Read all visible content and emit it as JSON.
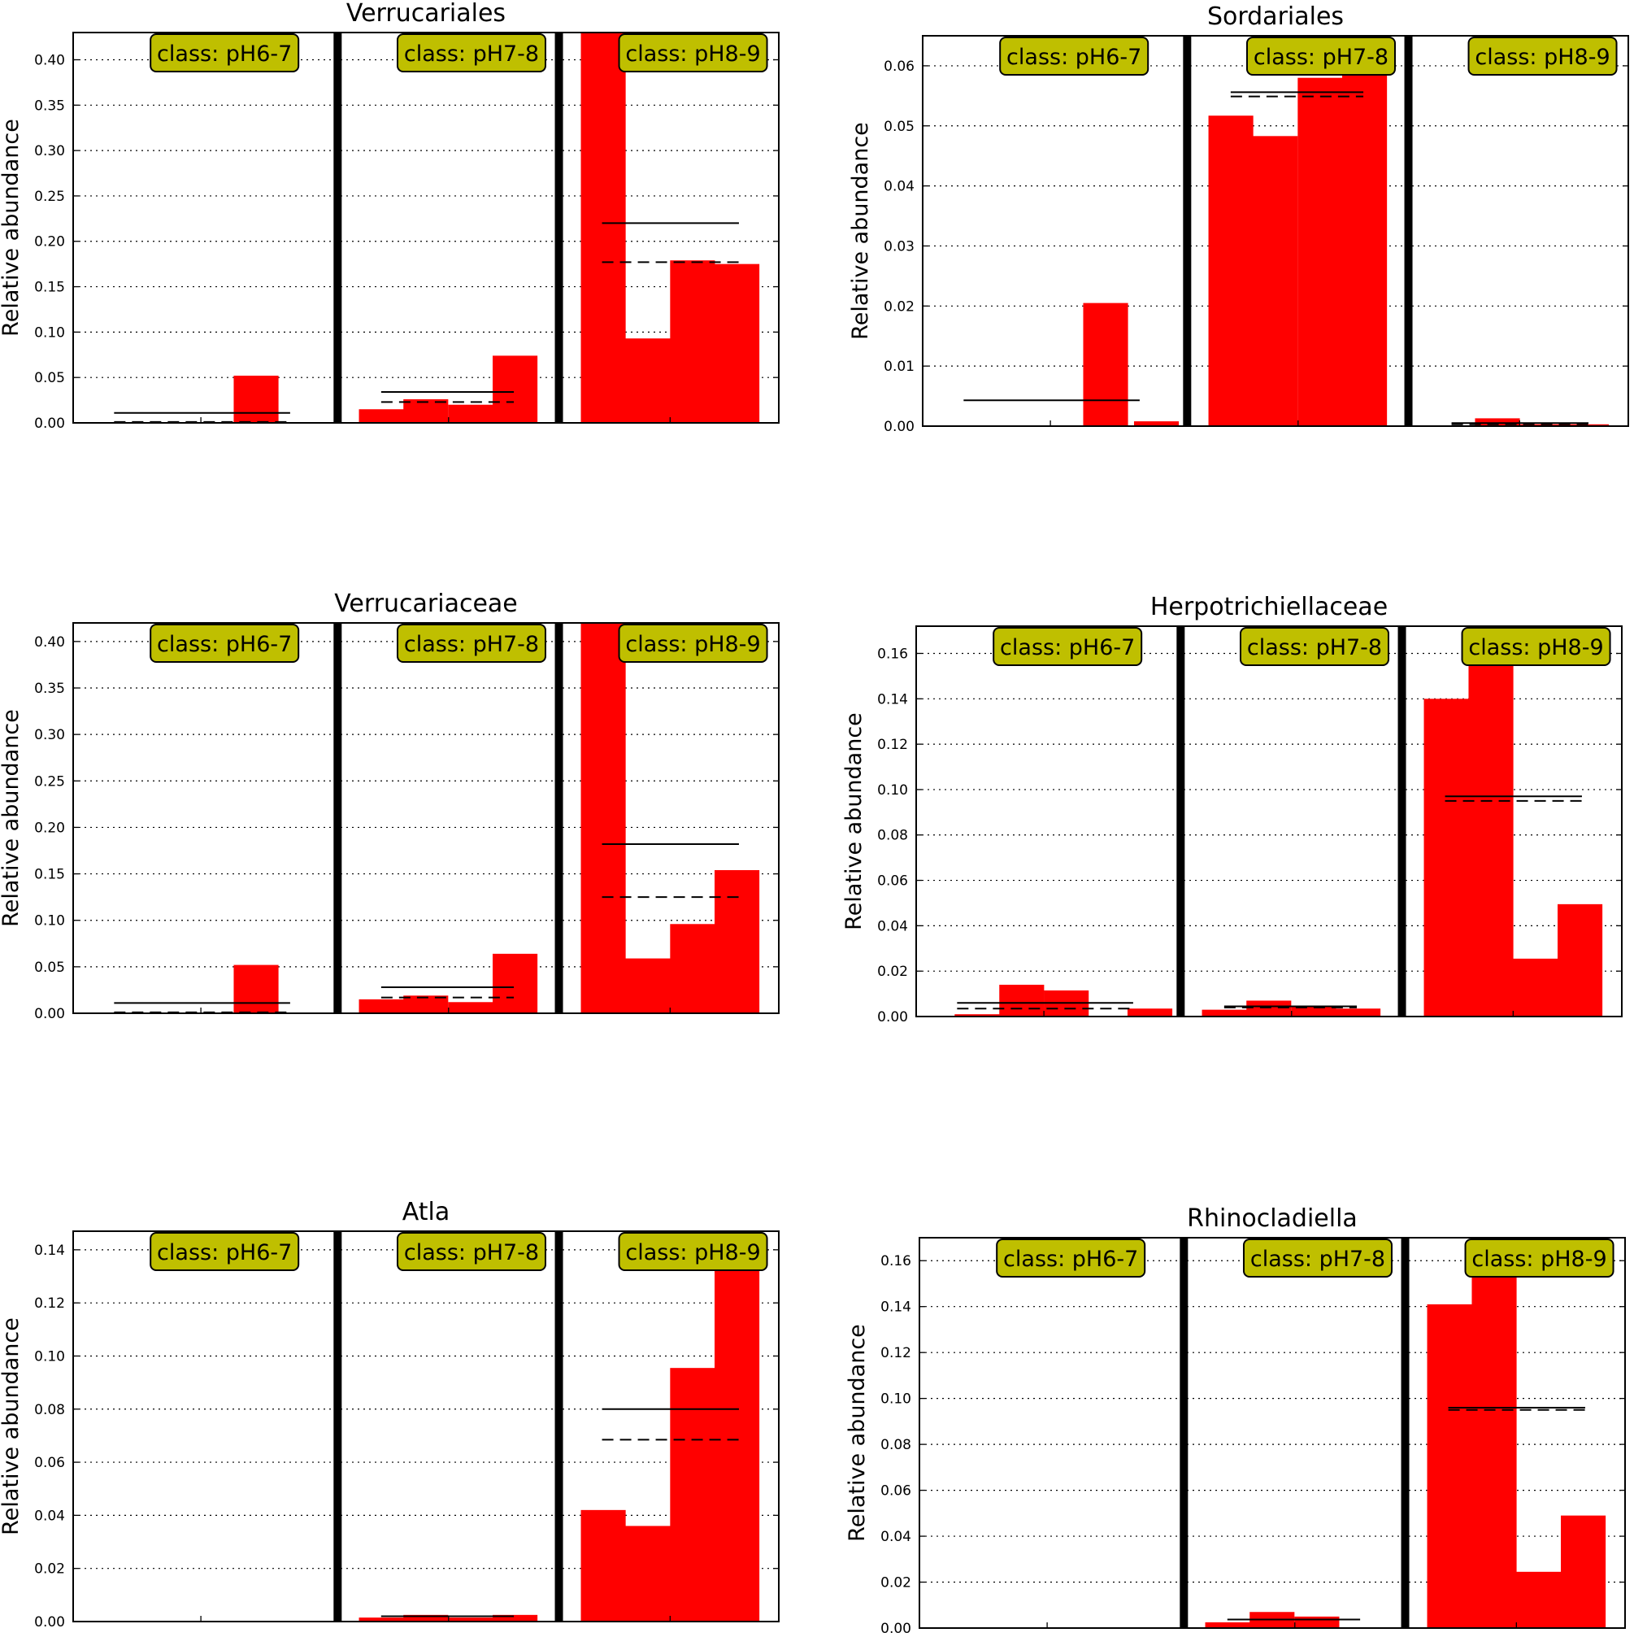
{
  "figure": {
    "ylabel": "Relative abundance",
    "class_labels": [
      "class: pH6-7",
      "class: pH7-8",
      "class: pH8-9"
    ],
    "colors": {
      "bar": "#ff0000",
      "badge_fill": "#bfbf00",
      "badge_border": "#000000",
      "separator": "#000000"
    }
  },
  "chart_data": [
    {
      "type": "bar",
      "title": "Verrucariales",
      "ylabel": "Relative abundance",
      "ylim": [
        0,
        0.43
      ],
      "yticks": [
        "0.00",
        "0.05",
        "0.10",
        "0.15",
        "0.20",
        "0.25",
        "0.30",
        "0.35",
        "0.40"
      ],
      "grid": true,
      "groups": [
        {
          "label": "class: pH6-7",
          "values": [
            0,
            0,
            0,
            0.052,
            0
          ],
          "mean": 0.011,
          "median": 0.001
        },
        {
          "label": "class: pH7-8",
          "values": [
            0.015,
            0.026,
            0.02,
            0.074
          ],
          "mean": 0.034,
          "median": 0.023
        },
        {
          "label": "class: pH8-9",
          "values": [
            0.43,
            0.093,
            0.179,
            0.175
          ],
          "mean": 0.22,
          "median": 0.177
        }
      ]
    },
    {
      "type": "bar",
      "title": "Sordariales",
      "ylabel": "Relative abundance",
      "ylim": [
        0,
        0.065
      ],
      "yticks": [
        "0.00",
        "0.01",
        "0.02",
        "0.03",
        "0.04",
        "0.05",
        "0.06"
      ],
      "grid": true,
      "groups": [
        {
          "label": "class: pH6-7",
          "values": [
            0,
            0,
            0,
            0.0205,
            0.0008
          ],
          "mean": 0.0043,
          "median": 0
        },
        {
          "label": "class: pH7-8",
          "values": [
            0.0517,
            0.0483,
            0.058,
            0.065
          ],
          "mean": 0.0556,
          "median": 0.0549
        },
        {
          "label": "class: pH8-9",
          "values": [
            0.0001,
            0.0013,
            0.0003,
            0.0003
          ],
          "mean": 0.0005,
          "median": 0.0003
        }
      ]
    },
    {
      "type": "bar",
      "title": "Verrucariaceae",
      "ylabel": "Relative abundance",
      "ylim": [
        0,
        0.42
      ],
      "yticks": [
        "0.00",
        "0.05",
        "0.10",
        "0.15",
        "0.20",
        "0.25",
        "0.30",
        "0.35",
        "0.40"
      ],
      "grid": true,
      "groups": [
        {
          "label": "class: pH6-7",
          "values": [
            0,
            0,
            0,
            0.052,
            0
          ],
          "mean": 0.011,
          "median": 0.001
        },
        {
          "label": "class: pH7-8",
          "values": [
            0.015,
            0.019,
            0.012,
            0.064
          ],
          "mean": 0.028,
          "median": 0.017
        },
        {
          "label": "class: pH8-9",
          "values": [
            0.42,
            0.059,
            0.096,
            0.154
          ],
          "mean": 0.182,
          "median": 0.125
        }
      ]
    },
    {
      "type": "bar",
      "title": "Herpotrichiellaceae",
      "ylabel": "Relative abundance",
      "ylim": [
        0,
        0.172
      ],
      "yticks": [
        "0.00",
        "0.02",
        "0.04",
        "0.06",
        "0.08",
        "0.10",
        "0.12",
        "0.14",
        "0.16"
      ],
      "grid": true,
      "groups": [
        {
          "label": "class: pH6-7",
          "values": [
            0.001,
            0.014,
            0.0115,
            0,
            0.0035
          ],
          "mean": 0.006,
          "median": 0.0035
        },
        {
          "label": "class: pH7-8",
          "values": [
            0.003,
            0.007,
            0.0045,
            0.0035
          ],
          "mean": 0.0045,
          "median": 0.004
        },
        {
          "label": "class: pH8-9",
          "values": [
            0.14,
            0.172,
            0.0255,
            0.0495
          ],
          "mean": 0.097,
          "median": 0.095
        }
      ]
    },
    {
      "type": "bar",
      "title": "Atla",
      "ylabel": "Relative abundance",
      "ylim": [
        0,
        0.147
      ],
      "yticks": [
        "0.00",
        "0.02",
        "0.04",
        "0.06",
        "0.08",
        "0.10",
        "0.12",
        "0.14"
      ],
      "grid": true,
      "groups": [
        {
          "label": "class: pH6-7",
          "values": [
            0,
            0,
            0,
            0,
            0
          ],
          "mean": 0,
          "median": 0
        },
        {
          "label": "class: pH7-8",
          "values": [
            0.0015,
            0.0025,
            0.0015,
            0.0025
          ],
          "mean": 0.002,
          "median": 0.002
        },
        {
          "label": "class: pH8-9",
          "values": [
            0.042,
            0.036,
            0.0955,
            0.147
          ],
          "mean": 0.08,
          "median": 0.0685
        }
      ]
    },
    {
      "type": "bar",
      "title": "Rhinocladiella",
      "ylabel": "Relative abundance",
      "ylim": [
        0,
        0.17
      ],
      "yticks": [
        "0.00",
        "0.02",
        "0.04",
        "0.06",
        "0.08",
        "0.10",
        "0.12",
        "0.14",
        "0.16"
      ],
      "grid": true,
      "groups": [
        {
          "label": "class: pH6-7",
          "values": [
            0,
            0,
            0,
            0,
            0
          ],
          "mean": 0,
          "median": 0
        },
        {
          "label": "class: pH7-8",
          "values": [
            0.0025,
            0.007,
            0.005,
            0
          ],
          "mean": 0.0037,
          "median": 0.0037
        },
        {
          "label": "class: pH8-9",
          "values": [
            0.141,
            0.17,
            0.0245,
            0.049
          ],
          "mean": 0.096,
          "median": 0.095
        }
      ]
    }
  ]
}
